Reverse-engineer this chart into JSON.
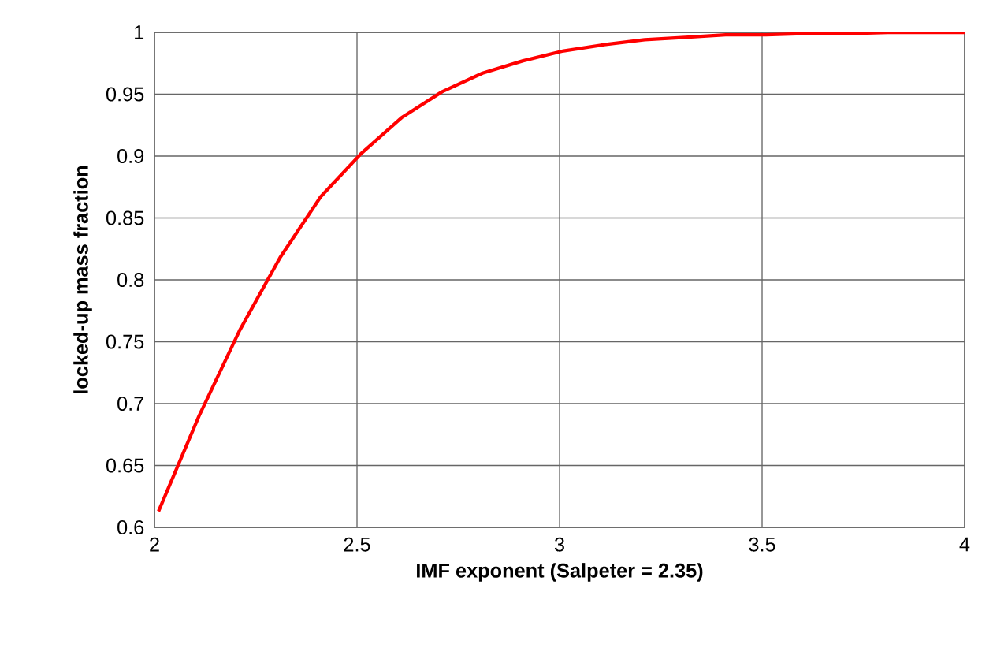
{
  "chart_data": {
    "type": "line",
    "xlabel": "IMF exponent (Salpeter = 2.35)",
    "ylabel": "locked-up mass fraction",
    "x": [
      2.01,
      2.11,
      2.21,
      2.31,
      2.41,
      2.51,
      2.61,
      2.71,
      2.81,
      2.91,
      3.01,
      3.11,
      3.21,
      3.31,
      3.41,
      3.51,
      3.61,
      3.71,
      3.81,
      3.91,
      4.0
    ],
    "series": [
      {
        "color": "#ff0000",
        "values": [
          0.613,
          0.69,
          0.759,
          0.818,
          0.867,
          0.902,
          0.931,
          0.952,
          0.967,
          0.977,
          0.985,
          0.99,
          0.994,
          0.996,
          0.998,
          0.998,
          0.999,
          0.999,
          1.0,
          1.0,
          1.0
        ]
      }
    ],
    "xlim": [
      2,
      4
    ],
    "xticks": [
      2,
      2.5,
      3,
      3.5,
      4
    ],
    "ylim": [
      0.6,
      1
    ],
    "yticks": [
      0.6,
      0.65,
      0.7,
      0.75,
      0.8,
      0.85,
      0.9,
      0.95,
      1
    ],
    "grid": true,
    "marker": "none",
    "line_style": "solid"
  }
}
